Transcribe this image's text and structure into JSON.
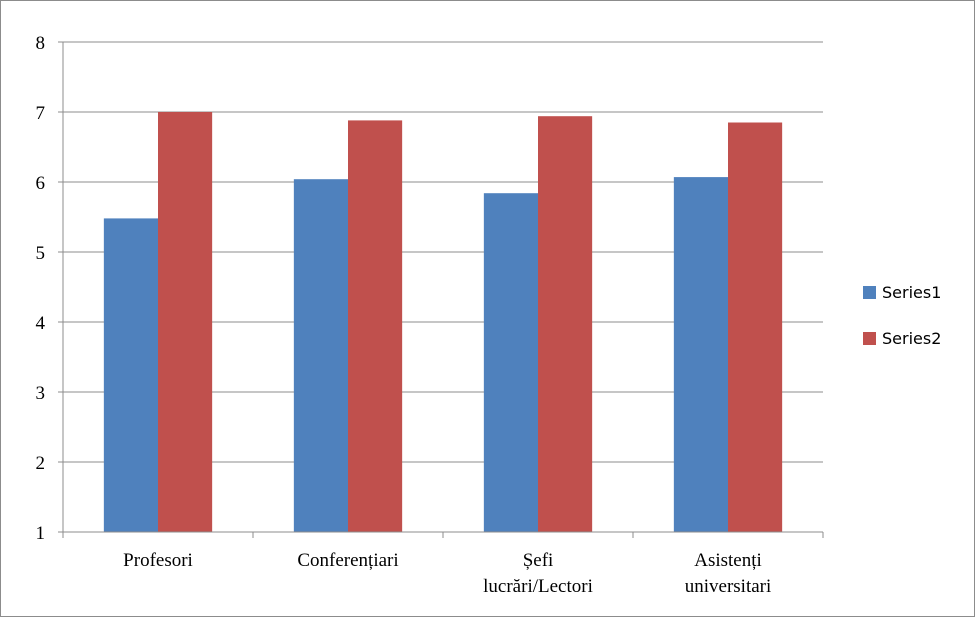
{
  "chart_data": {
    "type": "bar",
    "categories": [
      [
        "Profesori"
      ],
      [
        "Conferențiari"
      ],
      [
        "Șefi",
        "lucrări/Lectori"
      ],
      [
        "Asistenți",
        "universitari"
      ]
    ],
    "series": [
      {
        "name": "Series1",
        "color": "#4f81bd",
        "values": [
          5.48,
          6.04,
          5.84,
          6.07
        ]
      },
      {
        "name": "Series2",
        "color": "#c0504d",
        "values": [
          7.0,
          6.88,
          6.94,
          6.85
        ]
      }
    ],
    "title": "",
    "xlabel": "",
    "ylabel": "",
    "ylim": [
      1,
      8
    ],
    "yticks": [
      "1",
      "2",
      "3",
      "4",
      "5",
      "6",
      "7",
      "8"
    ],
    "grid": true,
    "legend_position": "right"
  }
}
